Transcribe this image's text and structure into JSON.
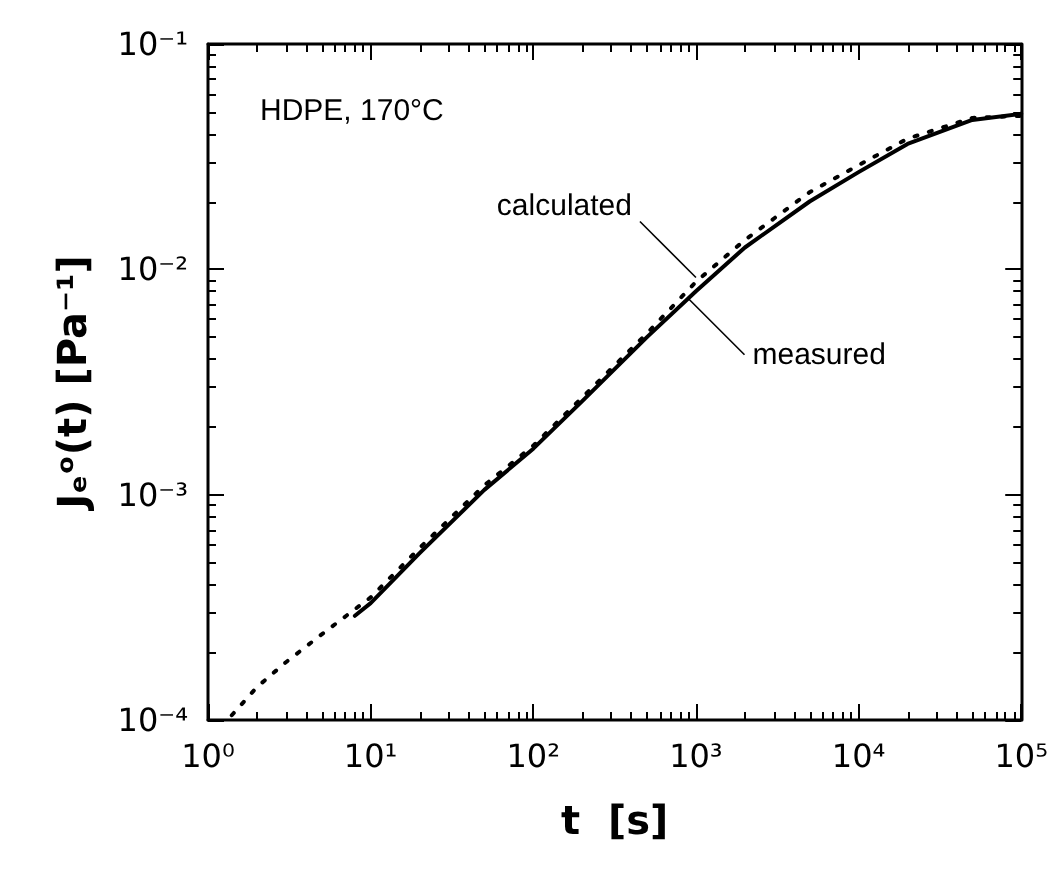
{
  "chart_data": {
    "type": "line",
    "xlabel": "t  [s]",
    "ylabel": "Jₑᵒ(t) [Pa⁻¹]",
    "log": "xy",
    "grid": false,
    "marker": "none",
    "xlim": [
      1,
      100000
    ],
    "ylim": [
      0.0001,
      0.1
    ],
    "xticks": [
      {
        "value": 1,
        "label": "10⁰"
      },
      {
        "value": 10,
        "label": "10¹"
      },
      {
        "value": 100,
        "label": "10²"
      },
      {
        "value": 1000,
        "label": "10³"
      },
      {
        "value": 10000,
        "label": "10⁴"
      },
      {
        "value": 100000,
        "label": "10⁵"
      }
    ],
    "yticks": [
      {
        "value": 0.0001,
        "label": "10⁻⁴"
      },
      {
        "value": 0.001,
        "label": "10⁻³"
      },
      {
        "value": 0.01,
        "label": "10⁻²"
      },
      {
        "value": 0.1,
        "label": "10⁻¹"
      }
    ],
    "series": [
      {
        "color": "#000000",
        "line_style": "dotted",
        "x": [
          1.4,
          2,
          3,
          5,
          8,
          10,
          20,
          50,
          100,
          200,
          500,
          1000,
          2000,
          5000,
          10000,
          20000,
          50000,
          100000
        ],
        "values": [
          0.000105,
          0.00014,
          0.00018,
          0.00024,
          0.00031,
          0.00035,
          0.00058,
          0.0011,
          0.00165,
          0.0027,
          0.0052,
          0.0088,
          0.0135,
          0.022,
          0.029,
          0.038,
          0.047,
          0.048
        ]
      },
      {
        "color": "#000000",
        "line_style": "solid",
        "x": [
          8,
          10,
          20,
          50,
          100,
          200,
          500,
          1000,
          2000,
          5000,
          10000,
          20000,
          50000,
          100000
        ],
        "values": [
          0.00029,
          0.00033,
          0.00055,
          0.00105,
          0.0016,
          0.0026,
          0.005,
          0.008,
          0.0125,
          0.02,
          0.027,
          0.036,
          0.046,
          0.049
        ]
      }
    ],
    "annotations": [
      "HDPE, 170°C",
      {
        "text": "calculated",
        "x": 1000,
        "y": 0.0092
      },
      {
        "text": "measured",
        "x": 900,
        "y": 0.0074
      }
    ]
  }
}
